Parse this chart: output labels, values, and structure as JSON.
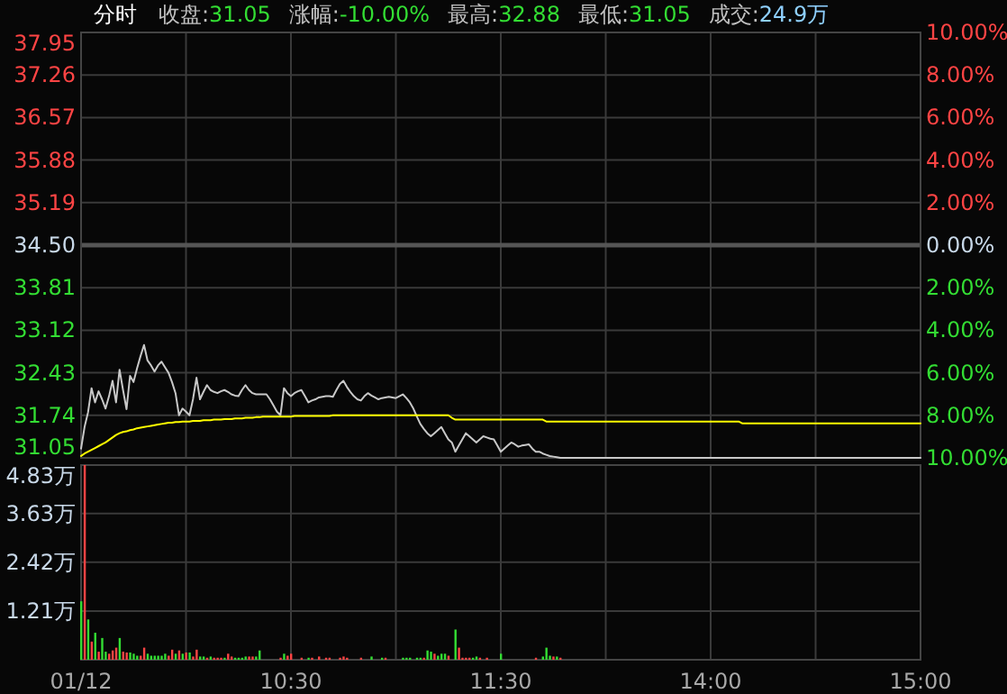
{
  "chart_data": [
    {
      "type": "line",
      "title": "分时",
      "annotations": [
        "收盘:31.05",
        "涨幅:-10.00%",
        "最高:32.88",
        "最低:31.05",
        "成交:24.9万"
      ],
      "categories": [
        null,
        null,
        null,
        null,
        null,
        null,
        null,
        null,
        null,
        null,
        null,
        null,
        null,
        null,
        null,
        null,
        null,
        null,
        null,
        null,
        null,
        null,
        null,
        null,
        null,
        null,
        null,
        null,
        null,
        null,
        null,
        null,
        null,
        null,
        null,
        null,
        null,
        null,
        null,
        null,
        null,
        null,
        null,
        null,
        null,
        null,
        null,
        null,
        null,
        null,
        null,
        null,
        null,
        null,
        null,
        null,
        null,
        null,
        null,
        null,
        null,
        null,
        null,
        null,
        null,
        null,
        null,
        null,
        null,
        null,
        null,
        null,
        null,
        null,
        null,
        null,
        null,
        null,
        null,
        null,
        null,
        null,
        null,
        null,
        null,
        null,
        null,
        null,
        null,
        null,
        null,
        null,
        null,
        null,
        null,
        null,
        null,
        null,
        null,
        null,
        null,
        null,
        null,
        null,
        null,
        null,
        null,
        null,
        null,
        null,
        null,
        null,
        null,
        null,
        null,
        null,
        null,
        null,
        null,
        null,
        null,
        null,
        null,
        null,
        null,
        null,
        null,
        null,
        null,
        null,
        null,
        null,
        null,
        null,
        null,
        null,
        null,
        null,
        null,
        null,
        null,
        null,
        null,
        null,
        null,
        null,
        null,
        null,
        null,
        null,
        null,
        null,
        null,
        null,
        null,
        null,
        null,
        null,
        null,
        null,
        null,
        null,
        null,
        null,
        null,
        null,
        null,
        null,
        null,
        null,
        null,
        null,
        null,
        null,
        null,
        null,
        null,
        null,
        null,
        null,
        null,
        null,
        null,
        null,
        null,
        null,
        null,
        null,
        null,
        null,
        null,
        null,
        null,
        null,
        null,
        null,
        null,
        null,
        null,
        null,
        null,
        null,
        null,
        null,
        null,
        null,
        null,
        null,
        null,
        null,
        null,
        null,
        null,
        null,
        null,
        null,
        null,
        null,
        null,
        null,
        null,
        null,
        null,
        null,
        null,
        null,
        null,
        null,
        null,
        null,
        null,
        null,
        null,
        null,
        null,
        null,
        null,
        null,
        null,
        null,
        null
      ],
      "ylim": [
        31.05,
        37.95
      ],
      "yticks": [
        {
          "value": 31.05,
          "label": "31.05"
        },
        {
          "value": 31.74,
          "label": "31.74"
        },
        {
          "value": 32.43,
          "label": "32.43"
        },
        {
          "value": 33.12,
          "label": "33.12"
        },
        {
          "value": 33.81,
          "label": "33.81"
        },
        {
          "value": 34.5,
          "label": "34.50"
        },
        {
          "value": 35.19,
          "label": "35.19"
        },
        {
          "value": 35.88,
          "label": "35.88"
        },
        {
          "value": 36.57,
          "label": "36.57"
        },
        {
          "value": 37.26,
          "label": "37.26"
        },
        {
          "value": 37.95,
          "label": "37.95"
        }
      ],
      "y2lim": [
        -10,
        10
      ],
      "y2ticks": [
        {
          "value": -10,
          "label": "10.00%"
        },
        {
          "value": -8,
          "label": "8.00%"
        },
        {
          "value": -6,
          "label": "6.00%"
        },
        {
          "value": -4,
          "label": "4.00%"
        },
        {
          "value": -2,
          "label": "2.00%"
        },
        {
          "value": 0,
          "label": "0.00%"
        },
        {
          "value": 2,
          "label": "2.00%"
        },
        {
          "value": 4,
          "label": "4.00%"
        },
        {
          "value": 6,
          "label": "6.00%"
        },
        {
          "value": 8,
          "label": "8.00%"
        },
        {
          "value": 10,
          "label": "10.00%"
        }
      ],
      "tick_labels": "y",
      "grid": true,
      "ref_lines": [
        {
          "axis": "y",
          "value": 34.5,
          "color": "#555555"
        }
      ],
      "series": [
        {
          "color": "#c8c8c8",
          "values": [
            31.2,
            31.55,
            31.79,
            32.18,
            31.95,
            32.13,
            32.0,
            31.85,
            32.05,
            32.3,
            31.95,
            32.48,
            32.15,
            31.84,
            32.38,
            32.28,
            32.5,
            32.7,
            32.88,
            32.63,
            32.55,
            32.45,
            32.55,
            32.61,
            32.52,
            32.43,
            32.28,
            32.1,
            31.74,
            31.85,
            31.8,
            31.74,
            32.0,
            32.35,
            32.0,
            32.12,
            32.23,
            32.15,
            32.12,
            32.1,
            32.13,
            32.15,
            32.12,
            32.08,
            32.06,
            32.05,
            32.15,
            32.23,
            32.15,
            32.1,
            32.08,
            32.08,
            32.08,
            32.08,
            32.0,
            31.9,
            31.8,
            31.74,
            32.18,
            32.1,
            32.05,
            32.1,
            32.13,
            32.15,
            32.05,
            31.95,
            31.98,
            32.0,
            32.03,
            32.04,
            32.05,
            32.05,
            32.04,
            32.15,
            32.25,
            32.3,
            32.2,
            32.12,
            32.05,
            32.0,
            31.98,
            32.05,
            32.1,
            32.06,
            32.03,
            32.0,
            32.02,
            32.03,
            32.04,
            32.03,
            32.02,
            32.05,
            32.08,
            32.02,
            31.95,
            31.85,
            31.72,
            31.6,
            31.52,
            31.45,
            31.4,
            31.45,
            31.5,
            31.55,
            31.45,
            31.35,
            31.3,
            31.15,
            31.25,
            31.35,
            31.45,
            31.4,
            31.35,
            31.3,
            31.35,
            31.4,
            31.38,
            31.36,
            31.35,
            31.25,
            31.15,
            31.2,
            31.25,
            31.3,
            31.27,
            31.23,
            31.25,
            31.26,
            31.27,
            31.2,
            31.15,
            31.15,
            31.12,
            31.1,
            31.08,
            31.07,
            31.06,
            31.05,
            31.05,
            31.05,
            31.05,
            31.05,
            31.05,
            31.05,
            31.05,
            31.05,
            31.05,
            31.05,
            31.05,
            31.05,
            31.05,
            31.05,
            31.05,
            31.05,
            31.05,
            31.05,
            31.05,
            31.05,
            31.05,
            31.05,
            31.05,
            31.05,
            31.05,
            31.05,
            31.05,
            31.05,
            31.05,
            31.05,
            31.05,
            31.05,
            31.05,
            31.05,
            31.05,
            31.05,
            31.05,
            31.05,
            31.05,
            31.05,
            31.05,
            31.05,
            31.05,
            31.05,
            31.05,
            31.05,
            31.05,
            31.05,
            31.05,
            31.05,
            31.05,
            31.05,
            31.05,
            31.05,
            31.05,
            31.05,
            31.05,
            31.05,
            31.05,
            31.05,
            31.05,
            31.05,
            31.05,
            31.05,
            31.05,
            31.05,
            31.05,
            31.05,
            31.05,
            31.05,
            31.05,
            31.05,
            31.05,
            31.05,
            31.05,
            31.05,
            31.05,
            31.05,
            31.05,
            31.05,
            31.05,
            31.05,
            31.05,
            31.05,
            31.05,
            31.05,
            31.05,
            31.05,
            31.05,
            31.05,
            31.05,
            31.05,
            31.05,
            31.05,
            31.05,
            31.05,
            31.05,
            31.05,
            31.05,
            31.05,
            31.05,
            31.05,
            31.05
          ]
        },
        {
          "color": "#ffff00",
          "values": [
            31.08,
            31.12,
            31.15,
            31.18,
            31.21,
            31.24,
            31.27,
            31.3,
            31.34,
            31.38,
            31.42,
            31.45,
            31.47,
            31.48,
            31.5,
            31.51,
            31.53,
            31.54,
            31.55,
            31.56,
            31.57,
            31.58,
            31.59,
            31.6,
            31.61,
            31.62,
            31.62,
            31.63,
            31.63,
            31.64,
            31.64,
            31.64,
            31.65,
            31.65,
            31.65,
            31.66,
            31.66,
            31.66,
            31.67,
            31.67,
            31.67,
            31.68,
            31.68,
            31.68,
            31.69,
            31.69,
            31.69,
            31.7,
            31.7,
            31.7,
            31.71,
            31.71,
            31.72,
            31.72,
            31.72,
            31.72,
            31.72,
            31.72,
            31.72,
            31.72,
            31.72,
            31.73,
            31.73,
            31.73,
            31.73,
            31.73,
            31.73,
            31.73,
            31.73,
            31.73,
            31.73,
            31.73,
            31.74,
            31.74,
            31.74,
            31.74,
            31.74,
            31.74,
            31.74,
            31.74,
            31.74,
            31.74,
            31.74,
            31.74,
            31.74,
            31.74,
            31.74,
            31.74,
            31.74,
            31.74,
            31.74,
            31.74,
            31.74,
            31.74,
            31.74,
            31.74,
            31.74,
            31.74,
            31.74,
            31.74,
            31.74,
            31.74,
            31.74,
            31.74,
            31.74,
            31.74,
            31.7,
            31.67,
            31.67,
            31.67,
            31.67,
            31.67,
            31.67,
            31.67,
            31.67,
            31.67,
            31.67,
            31.67,
            31.67,
            31.67,
            31.67,
            31.67,
            31.67,
            31.67,
            31.67,
            31.67,
            31.67,
            31.67,
            31.67,
            31.67,
            31.67,
            31.67,
            31.67,
            31.64,
            31.64,
            31.64,
            31.64,
            31.64,
            31.64,
            31.64,
            31.64,
            31.64,
            31.64,
            31.64,
            31.64,
            31.64,
            31.64,
            31.64,
            31.64,
            31.64,
            31.64,
            31.64,
            31.64,
            31.64,
            31.64,
            31.64,
            31.64,
            31.64,
            31.64,
            31.64,
            31.64,
            31.64,
            31.64,
            31.64,
            31.64,
            31.64,
            31.64,
            31.64,
            31.64,
            31.64,
            31.64,
            31.64,
            31.64,
            31.64,
            31.64,
            31.64,
            31.64,
            31.64,
            31.64,
            31.64,
            31.64,
            31.64,
            31.64,
            31.64,
            31.64,
            31.64,
            31.64,
            31.64,
            31.64,
            31.61,
            31.61,
            31.61,
            31.61,
            31.61,
            31.61,
            31.61,
            31.61,
            31.61,
            31.61,
            31.61,
            31.61,
            31.61,
            31.61,
            31.61,
            31.61,
            31.61,
            31.61,
            31.61,
            31.61,
            31.61,
            31.61,
            31.61,
            31.61,
            31.61,
            31.61,
            31.61,
            31.61,
            31.61,
            31.61,
            31.61,
            31.61,
            31.61,
            31.61,
            31.61,
            31.61,
            31.61,
            31.61,
            31.61,
            31.61,
            31.61,
            31.61,
            31.61,
            31.61,
            31.61,
            31.61,
            31.61,
            31.61,
            31.61,
            31.61,
            31.61,
            31.61
          ]
        }
      ]
    },
    {
      "type": "bar",
      "categories": [
        "01/12",
        null,
        null,
        null,
        null,
        null,
        null,
        null,
        null,
        null,
        null,
        null,
        null,
        null,
        null,
        null,
        null,
        null,
        null,
        null,
        null,
        null,
        null,
        null,
        null,
        null,
        null,
        null,
        null,
        null,
        null,
        null,
        null,
        null,
        null,
        null,
        null,
        null,
        null,
        null,
        null,
        null,
        null,
        null,
        null,
        null,
        null,
        null,
        null,
        null,
        null,
        null,
        null,
        null,
        null,
        null,
        null,
        null,
        null,
        null,
        "10:30",
        null,
        null,
        null,
        null,
        null,
        null,
        null,
        null,
        null,
        null,
        null,
        null,
        null,
        null,
        null,
        null,
        null,
        null,
        null,
        null,
        null,
        null,
        null,
        null,
        null,
        null,
        null,
        null,
        null,
        null,
        null,
        null,
        null,
        null,
        null,
        null,
        null,
        null,
        null,
        null,
        null,
        null,
        null,
        null,
        null,
        null,
        null,
        null,
        null,
        null,
        null,
        null,
        null,
        null,
        null,
        null,
        null,
        null,
        null,
        "11:30",
        null,
        null,
        null,
        null,
        null,
        null,
        null,
        null,
        null,
        null,
        null,
        null,
        null,
        null,
        null,
        null,
        null,
        null,
        null,
        null,
        null,
        null,
        null,
        null,
        null,
        null,
        null,
        null,
        null,
        null,
        null,
        null,
        null,
        null,
        null,
        null,
        null,
        null,
        null,
        null,
        null,
        null,
        null,
        null,
        null,
        null,
        null,
        null,
        null,
        null,
        null,
        null,
        null,
        null,
        null,
        null,
        null,
        null,
        null,
        "14:00",
        null,
        null,
        null,
        null,
        null,
        null,
        null,
        null,
        null,
        null,
        null,
        null,
        null,
        null,
        null,
        null,
        null,
        null,
        null,
        null,
        null,
        null,
        null,
        null,
        null,
        null,
        null,
        null,
        null,
        null,
        null,
        null,
        null,
        null,
        null,
        null,
        null,
        null,
        null,
        null,
        null,
        null,
        null,
        null,
        null,
        null,
        null,
        null,
        null,
        null,
        null,
        null,
        null,
        null,
        null,
        null,
        null,
        null,
        null,
        "15:00"
      ],
      "ylim": [
        0,
        4.83
      ],
      "yticks": [
        {
          "value": 1.21,
          "label": "1.21万"
        },
        {
          "value": 2.42,
          "label": "2.42万"
        },
        {
          "value": 3.63,
          "label": "3.63万"
        },
        {
          "value": 4.83,
          "label": "4.83万"
        }
      ],
      "grid": true,
      "values": [
        1.45,
        4.83,
        1.0,
        0.45,
        0.67,
        0.2,
        0.54,
        0.2,
        0.15,
        0.23,
        0.3,
        0.54,
        0.2,
        0.18,
        0.18,
        0.15,
        0.1,
        0.1,
        0.3,
        0.15,
        0.1,
        0.1,
        0.1,
        0.1,
        0.15,
        0.1,
        0.25,
        0.15,
        0.23,
        0.15,
        0.18,
        0.18,
        0.08,
        0.25,
        0.08,
        0.08,
        0.05,
        0.08,
        0.05,
        0.05,
        0.05,
        0.05,
        0.15,
        0.08,
        0.05,
        0.05,
        0.05,
        0.08,
        0.08,
        0.08,
        0.08,
        0.23,
        null,
        null,
        null,
        null,
        null,
        0.05,
        0.15,
        0.1,
        0.15,
        null,
        null,
        0.05,
        null,
        0.05,
        0.05,
        null,
        0.08,
        null,
        0.05,
        0.05,
        null,
        null,
        0.05,
        0.08,
        0.05,
        null,
        null,
        null,
        0.05,
        null,
        null,
        0.08,
        null,
        null,
        0.05,
        0.05,
        null,
        null,
        null,
        null,
        0.05,
        0.05,
        0.05,
        null,
        0.05,
        0.05,
        0.05,
        0.23,
        0.2,
        0.15,
        0.1,
        0.15,
        0.15,
        0.1,
        null,
        0.75,
        0.3,
        0.05,
        0.05,
        0.05,
        0.05,
        0.08,
        0.05,
        null,
        0.05,
        null,
        null,
        null,
        0.15,
        null,
        null,
        null,
        null,
        null,
        null,
        null,
        null,
        null,
        0.05,
        null,
        0.08,
        0.3,
        0.1,
        0.08,
        0.08,
        0.05,
        null,
        null,
        null,
        null,
        null,
        null,
        null,
        null,
        null,
        null,
        null,
        null,
        null,
        null,
        null,
        null,
        null,
        null,
        null,
        null,
        null,
        null,
        null,
        null,
        null,
        null,
        null,
        null,
        null,
        null,
        null,
        null,
        null,
        null,
        null,
        null,
        null,
        null,
        null,
        null,
        null,
        null,
        null,
        null,
        null,
        null,
        null,
        null,
        null,
        null,
        null,
        null,
        null,
        null,
        null,
        null,
        null,
        null,
        null,
        null,
        null,
        null,
        null,
        null,
        null,
        null,
        null,
        null,
        null,
        null,
        null,
        null,
        null,
        null,
        null,
        null,
        null,
        null,
        null,
        null,
        null,
        null,
        null,
        null,
        null,
        null,
        null,
        null,
        null,
        null,
        null,
        null,
        null,
        null,
        null,
        null,
        null,
        null,
        null,
        null,
        null,
        null,
        null
      ],
      "colors": [
        "#33dd33",
        "#ff4444",
        "#33dd33",
        "#ff4444",
        "#33dd33",
        "#ff4444",
        "#33dd33",
        "#33dd33",
        "#ff4444",
        "#ff4444",
        "#ff4444",
        "#33dd33",
        "#ff4444",
        "#ff4444",
        "#33dd33",
        "#33dd33",
        "#33dd33",
        "#ff4444",
        "#ff4444",
        "#33dd33",
        "#33dd33",
        "#33dd33",
        "#33dd33",
        "#33dd33",
        "#33dd33",
        "#ff4444",
        "#ff4444",
        "#33dd33",
        "#ff4444",
        "#33dd33",
        "#ff4444",
        "#33dd33",
        "#ff4444",
        "#ff4444",
        "#33dd33",
        "#33dd33",
        "#ff4444",
        "#33dd33",
        "#ff4444",
        "#ff4444",
        "#ff4444",
        "#33dd33",
        "#ff4444",
        "#ff4444",
        "#33dd33",
        "#33dd33",
        "#33dd33",
        "#33dd33",
        "#ff4444",
        "#ff4444",
        "#33dd33",
        "#33dd33",
        null,
        null,
        null,
        null,
        null,
        "#ff4444",
        "#33dd33",
        "#ff4444",
        "#ff4444",
        null,
        null,
        "#ff4444",
        null,
        "#33dd33",
        "#ff4444",
        null,
        "#ff4444",
        null,
        "#ff4444",
        "#ff4444",
        null,
        null,
        "#ff4444",
        "#ff4444",
        "#ff4444",
        null,
        null,
        null,
        "#ff4444",
        null,
        null,
        "#33dd33",
        null,
        null,
        "#33dd33",
        "#ff4444",
        null,
        null,
        null,
        null,
        "#33dd33",
        "#33dd33",
        "#33dd33",
        null,
        "#33dd33",
        "#33dd33",
        "#ff4444",
        "#33dd33",
        "#33dd33",
        "#ff4444",
        "#33dd33",
        "#33dd33",
        "#33dd33",
        "#ff4444",
        null,
        "#33dd33",
        "#ff4444",
        "#ff4444",
        "#ff4444",
        "#ff4444",
        "#33dd33",
        "#33dd33",
        "#ff4444",
        null,
        "#ff4444",
        null,
        null,
        null,
        "#33dd33",
        null,
        null,
        null,
        null,
        null,
        null,
        null,
        null,
        null,
        "#ff4444",
        null,
        "#33dd33",
        "#33dd33",
        "#33dd33",
        "#ff4444",
        "#33dd33",
        "#ff4444",
        null,
        null,
        null,
        null,
        null,
        null,
        null,
        null,
        null,
        null,
        null,
        null,
        null,
        null,
        null,
        null,
        null,
        null,
        null,
        null,
        null,
        null,
        null,
        null,
        null,
        null,
        null,
        null,
        null,
        null,
        null,
        null,
        null,
        null,
        null,
        null,
        null,
        null,
        null,
        null,
        null,
        null,
        null,
        null,
        null,
        null,
        null,
        null,
        null,
        null,
        null,
        null,
        null,
        null,
        null,
        null,
        null,
        null,
        null,
        null,
        null,
        null,
        null,
        null,
        null,
        null,
        null,
        null,
        null,
        null,
        null,
        null,
        null,
        null,
        null,
        null,
        null,
        null,
        null,
        null,
        null,
        null,
        null,
        null,
        null,
        null,
        null,
        null,
        null,
        null,
        null,
        null,
        null,
        null,
        null,
        null,
        null,
        null,
        null,
        null,
        null,
        null,
        null
      ]
    }
  ]
}
